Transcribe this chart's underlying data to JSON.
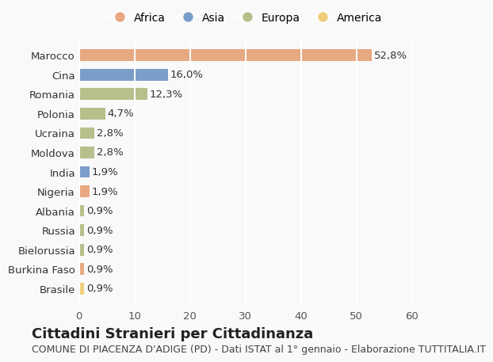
{
  "countries": [
    "Marocco",
    "Cina",
    "Romania",
    "Polonia",
    "Ucraina",
    "Moldova",
    "India",
    "Nigeria",
    "Albania",
    "Russia",
    "Bielorussia",
    "Burkina Faso",
    "Brasile"
  ],
  "values": [
    52.8,
    16.0,
    12.3,
    4.7,
    2.8,
    2.8,
    1.9,
    1.9,
    0.9,
    0.9,
    0.9,
    0.9,
    0.9
  ],
  "labels": [
    "52,8%",
    "16,0%",
    "12,3%",
    "4,7%",
    "2,8%",
    "2,8%",
    "1,9%",
    "1,9%",
    "0,9%",
    "0,9%",
    "0,9%",
    "0,9%",
    "0,9%"
  ],
  "bar_colors": [
    "#E8A882",
    "#7B9DC9",
    "#B5C08B",
    "#B5C08B",
    "#B5C08B",
    "#B5C08B",
    "#7B9DC9",
    "#E8A882",
    "#B5C08B",
    "#B5C08B",
    "#B5C08B",
    "#E8A882",
    "#F0CF7A"
  ],
  "legend_labels": [
    "Africa",
    "Asia",
    "Europa",
    "America"
  ],
  "legend_colors": [
    "#E8A882",
    "#7B9DC9",
    "#B5C08B",
    "#F0CF7A"
  ],
  "title": "Cittadini Stranieri per Cittadinanza",
  "subtitle": "COMUNE DI PIACENZA D'ADIGE (PD) - Dati ISTAT al 1° gennaio - Elaborazione TUTTITALIA.IT",
  "xlim": [
    0,
    60
  ],
  "xticks": [
    0,
    10,
    20,
    30,
    40,
    50,
    60
  ],
  "background_color": "#f9f9f9",
  "grid_color": "#ffffff",
  "title_fontsize": 13,
  "subtitle_fontsize": 9,
  "label_fontsize": 9.5,
  "tick_fontsize": 9.5
}
